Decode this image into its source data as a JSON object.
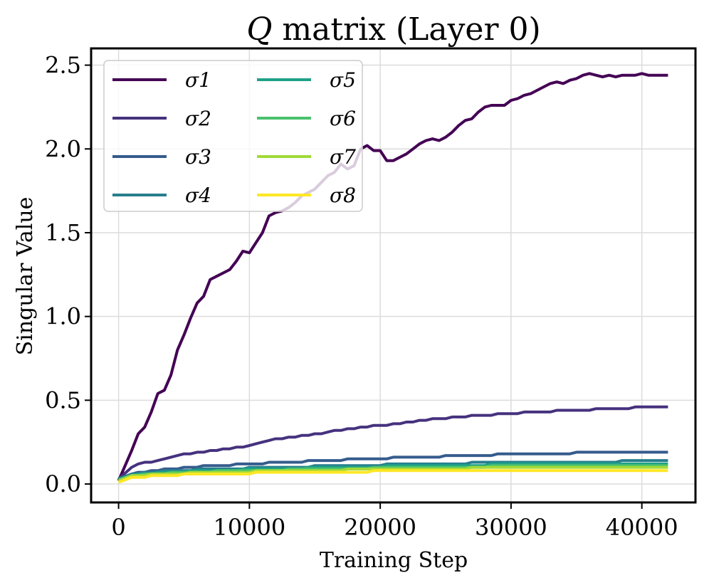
{
  "chart_data": {
    "type": "line",
    "title_var": "Q",
    "title_rest": " matrix (Layer 0)",
    "xlabel": "Training Step",
    "ylabel": "Singular Value",
    "xlim": [
      -2100,
      44100
    ],
    "ylim": [
      -0.11,
      2.6
    ],
    "xticks": [
      0,
      10000,
      20000,
      30000,
      40000
    ],
    "yticks": [
      0.0,
      0.5,
      1.0,
      1.5,
      2.0,
      2.5
    ],
    "ytick_labels": [
      "0.0",
      "0.5",
      "1.0",
      "1.5",
      "2.0",
      "2.5"
    ],
    "grid": true,
    "legend_position": "upper-left",
    "legend_columns": 2,
    "x": [
      0,
      1000,
      1500,
      2000,
      2500,
      3000,
      3500,
      4000,
      4500,
      5000,
      5500,
      6000,
      6500,
      7000,
      7500,
      8000,
      8500,
      9000,
      9500,
      10000,
      10500,
      11000,
      11500,
      12000,
      12500,
      13000,
      13500,
      14000,
      14500,
      15000,
      15500,
      16000,
      16500,
      17000,
      17500,
      18000,
      18500,
      19000,
      19500,
      20000,
      20500,
      21000,
      21500,
      22000,
      22500,
      23000,
      23500,
      24000,
      24500,
      25000,
      25500,
      26000,
      26500,
      27000,
      27500,
      28000,
      28500,
      29000,
      29500,
      30000,
      30500,
      31000,
      31500,
      32000,
      32500,
      33000,
      33500,
      34000,
      34500,
      35000,
      35500,
      36000,
      36500,
      37000,
      37500,
      38000,
      38500,
      39000,
      39500,
      40000,
      40500,
      41000,
      41500,
      42000
    ],
    "series": [
      {
        "name": "σ1",
        "sub": "1",
        "color": "#440154",
        "values": [
          0.02,
          0.2,
          0.3,
          0.34,
          0.43,
          0.54,
          0.56,
          0.65,
          0.8,
          0.89,
          0.99,
          1.08,
          1.12,
          1.22,
          1.24,
          1.26,
          1.28,
          1.33,
          1.39,
          1.38,
          1.44,
          1.5,
          1.6,
          1.62,
          1.63,
          1.65,
          1.68,
          1.72,
          1.74,
          1.76,
          1.8,
          1.84,
          1.86,
          1.91,
          1.88,
          1.9,
          2.0,
          2.02,
          1.99,
          1.99,
          1.93,
          1.93,
          1.95,
          1.97,
          2.0,
          2.03,
          2.05,
          2.06,
          2.05,
          2.07,
          2.1,
          2.14,
          2.17,
          2.18,
          2.22,
          2.25,
          2.26,
          2.26,
          2.26,
          2.29,
          2.3,
          2.32,
          2.33,
          2.35,
          2.37,
          2.39,
          2.4,
          2.39,
          2.41,
          2.42,
          2.44,
          2.45,
          2.44,
          2.43,
          2.44,
          2.43,
          2.44,
          2.44,
          2.44,
          2.45,
          2.44,
          2.44,
          2.44,
          2.44
        ]
      },
      {
        "name": "σ2",
        "sub": "2",
        "color": "#46327e",
        "values": [
          0.03,
          0.1,
          0.12,
          0.13,
          0.13,
          0.14,
          0.15,
          0.16,
          0.17,
          0.18,
          0.18,
          0.19,
          0.19,
          0.2,
          0.2,
          0.21,
          0.21,
          0.22,
          0.22,
          0.23,
          0.24,
          0.25,
          0.26,
          0.27,
          0.27,
          0.28,
          0.28,
          0.29,
          0.29,
          0.3,
          0.3,
          0.31,
          0.32,
          0.32,
          0.33,
          0.33,
          0.34,
          0.34,
          0.35,
          0.35,
          0.35,
          0.36,
          0.36,
          0.37,
          0.37,
          0.38,
          0.38,
          0.39,
          0.39,
          0.39,
          0.4,
          0.4,
          0.4,
          0.41,
          0.41,
          0.41,
          0.41,
          0.42,
          0.42,
          0.42,
          0.42,
          0.43,
          0.43,
          0.43,
          0.43,
          0.43,
          0.44,
          0.44,
          0.44,
          0.44,
          0.44,
          0.44,
          0.45,
          0.45,
          0.45,
          0.45,
          0.45,
          0.45,
          0.46,
          0.46,
          0.46,
          0.46,
          0.46,
          0.46
        ]
      },
      {
        "name": "σ3",
        "sub": "3",
        "color": "#365c8d",
        "values": [
          0.03,
          0.06,
          0.07,
          0.07,
          0.08,
          0.08,
          0.09,
          0.09,
          0.09,
          0.1,
          0.1,
          0.1,
          0.11,
          0.11,
          0.11,
          0.11,
          0.11,
          0.12,
          0.12,
          0.12,
          0.12,
          0.12,
          0.13,
          0.13,
          0.13,
          0.13,
          0.13,
          0.13,
          0.14,
          0.14,
          0.14,
          0.14,
          0.14,
          0.14,
          0.15,
          0.15,
          0.15,
          0.15,
          0.15,
          0.15,
          0.15,
          0.16,
          0.16,
          0.16,
          0.16,
          0.16,
          0.16,
          0.16,
          0.16,
          0.17,
          0.17,
          0.17,
          0.17,
          0.17,
          0.17,
          0.17,
          0.17,
          0.18,
          0.18,
          0.18,
          0.18,
          0.18,
          0.18,
          0.18,
          0.18,
          0.18,
          0.18,
          0.18,
          0.18,
          0.19,
          0.19,
          0.19,
          0.19,
          0.19,
          0.19,
          0.19,
          0.19,
          0.19,
          0.19,
          0.19,
          0.19,
          0.19,
          0.19,
          0.19
        ]
      },
      {
        "name": "σ4",
        "sub": "4",
        "color": "#277f8e",
        "values": [
          0.03,
          0.06,
          0.06,
          0.07,
          0.07,
          0.07,
          0.08,
          0.08,
          0.08,
          0.08,
          0.08,
          0.09,
          0.09,
          0.09,
          0.09,
          0.09,
          0.09,
          0.09,
          0.09,
          0.1,
          0.1,
          0.1,
          0.1,
          0.1,
          0.1,
          0.1,
          0.1,
          0.1,
          0.1,
          0.11,
          0.11,
          0.11,
          0.11,
          0.11,
          0.11,
          0.11,
          0.11,
          0.11,
          0.11,
          0.11,
          0.12,
          0.12,
          0.12,
          0.12,
          0.12,
          0.12,
          0.12,
          0.12,
          0.12,
          0.12,
          0.12,
          0.12,
          0.12,
          0.13,
          0.13,
          0.13,
          0.13,
          0.13,
          0.13,
          0.13,
          0.13,
          0.13,
          0.13,
          0.13,
          0.13,
          0.13,
          0.13,
          0.13,
          0.13,
          0.13,
          0.13,
          0.13,
          0.13,
          0.13,
          0.13,
          0.13,
          0.14,
          0.14,
          0.14,
          0.14,
          0.14,
          0.14,
          0.14,
          0.14
        ]
      },
      {
        "name": "σ5",
        "sub": "5",
        "color": "#1fa187",
        "values": [
          0.03,
          0.05,
          0.06,
          0.06,
          0.06,
          0.07,
          0.07,
          0.07,
          0.07,
          0.07,
          0.08,
          0.08,
          0.08,
          0.08,
          0.08,
          0.08,
          0.08,
          0.08,
          0.09,
          0.09,
          0.09,
          0.09,
          0.09,
          0.09,
          0.09,
          0.09,
          0.09,
          0.09,
          0.1,
          0.1,
          0.1,
          0.1,
          0.1,
          0.1,
          0.1,
          0.1,
          0.1,
          0.1,
          0.1,
          0.1,
          0.11,
          0.11,
          0.11,
          0.11,
          0.11,
          0.11,
          0.11,
          0.11,
          0.11,
          0.11,
          0.11,
          0.11,
          0.11,
          0.11,
          0.11,
          0.11,
          0.12,
          0.12,
          0.12,
          0.12,
          0.12,
          0.12,
          0.12,
          0.12,
          0.12,
          0.12,
          0.12,
          0.12,
          0.12,
          0.12,
          0.12,
          0.12,
          0.12,
          0.12,
          0.12,
          0.12,
          0.12,
          0.12,
          0.12,
          0.12,
          0.12,
          0.12,
          0.12,
          0.12
        ]
      },
      {
        "name": "σ6",
        "sub": "6",
        "color": "#4ac16d",
        "values": [
          0.02,
          0.05,
          0.05,
          0.06,
          0.06,
          0.06,
          0.06,
          0.07,
          0.07,
          0.07,
          0.07,
          0.07,
          0.07,
          0.07,
          0.08,
          0.08,
          0.08,
          0.08,
          0.08,
          0.08,
          0.08,
          0.08,
          0.08,
          0.08,
          0.08,
          0.09,
          0.09,
          0.09,
          0.09,
          0.09,
          0.09,
          0.09,
          0.09,
          0.09,
          0.09,
          0.09,
          0.09,
          0.09,
          0.1,
          0.1,
          0.1,
          0.1,
          0.1,
          0.1,
          0.1,
          0.1,
          0.1,
          0.1,
          0.1,
          0.1,
          0.1,
          0.1,
          0.1,
          0.1,
          0.1,
          0.1,
          0.11,
          0.11,
          0.11,
          0.11,
          0.11,
          0.11,
          0.11,
          0.11,
          0.11,
          0.11,
          0.11,
          0.11,
          0.11,
          0.11,
          0.11,
          0.11,
          0.11,
          0.11,
          0.11,
          0.11,
          0.11,
          0.11,
          0.11,
          0.11,
          0.11,
          0.11,
          0.11,
          0.11
        ]
      },
      {
        "name": "σ7",
        "sub": "7",
        "color": "#a0da39",
        "values": [
          0.02,
          0.05,
          0.05,
          0.05,
          0.06,
          0.06,
          0.06,
          0.06,
          0.06,
          0.06,
          0.07,
          0.07,
          0.07,
          0.07,
          0.07,
          0.07,
          0.07,
          0.07,
          0.07,
          0.07,
          0.08,
          0.08,
          0.08,
          0.08,
          0.08,
          0.08,
          0.08,
          0.08,
          0.08,
          0.08,
          0.08,
          0.08,
          0.08,
          0.08,
          0.09,
          0.09,
          0.09,
          0.09,
          0.09,
          0.09,
          0.09,
          0.09,
          0.09,
          0.09,
          0.09,
          0.09,
          0.09,
          0.09,
          0.09,
          0.09,
          0.09,
          0.09,
          0.09,
          0.1,
          0.1,
          0.1,
          0.1,
          0.1,
          0.1,
          0.1,
          0.1,
          0.1,
          0.1,
          0.1,
          0.1,
          0.1,
          0.1,
          0.1,
          0.1,
          0.1,
          0.1,
          0.1,
          0.1,
          0.1,
          0.1,
          0.1,
          0.1,
          0.1,
          0.1,
          0.1,
          0.1,
          0.1,
          0.1,
          0.1
        ]
      },
      {
        "name": "σ8",
        "sub": "8",
        "color": "#fde725",
        "values": [
          0.01,
          0.04,
          0.04,
          0.04,
          0.05,
          0.05,
          0.05,
          0.05,
          0.05,
          0.06,
          0.06,
          0.06,
          0.06,
          0.06,
          0.06,
          0.06,
          0.06,
          0.06,
          0.06,
          0.06,
          0.07,
          0.07,
          0.07,
          0.07,
          0.07,
          0.07,
          0.07,
          0.07,
          0.07,
          0.07,
          0.07,
          0.07,
          0.07,
          0.07,
          0.07,
          0.07,
          0.07,
          0.07,
          0.08,
          0.08,
          0.08,
          0.08,
          0.08,
          0.08,
          0.08,
          0.08,
          0.08,
          0.08,
          0.08,
          0.08,
          0.08,
          0.08,
          0.08,
          0.08,
          0.08,
          0.08,
          0.08,
          0.08,
          0.08,
          0.08,
          0.08,
          0.08,
          0.08,
          0.08,
          0.08,
          0.08,
          0.08,
          0.08,
          0.08,
          0.08,
          0.08,
          0.08,
          0.08,
          0.08,
          0.08,
          0.08,
          0.08,
          0.08,
          0.08,
          0.08,
          0.08,
          0.08,
          0.08,
          0.08
        ]
      }
    ]
  }
}
